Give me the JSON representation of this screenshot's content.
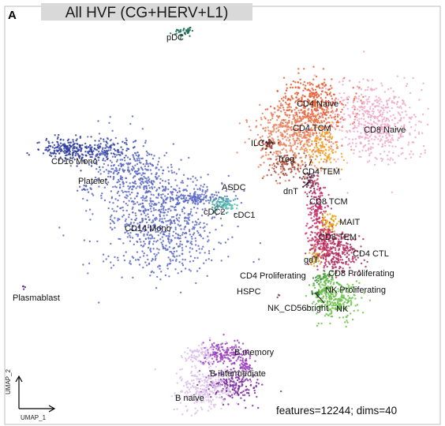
{
  "panel_letter": "A",
  "title": "All HVF (CG+HERV+L1)",
  "footer_note": "features=12244; dims=40",
  "chart_data": {
    "type": "scatter",
    "title": "All HVF (CG+HERV+L1)",
    "xlabel": "UMAP_1",
    "ylabel": "UMAP_2",
    "grid": false,
    "legend": "none (clusters labeled directly on plot)",
    "clusters": [
      {
        "name": "pDC",
        "color": "#1c6b57"
      },
      {
        "name": "CD16 Mono",
        "color": "#2e3d9c"
      },
      {
        "name": "Platelet",
        "color": "#4a56b3"
      },
      {
        "name": "CD14 Mono",
        "color": "#5a68c6"
      },
      {
        "name": "ASDC",
        "color": "#3aa79a"
      },
      {
        "name": "cDC2",
        "color": "#62c2b6"
      },
      {
        "name": "cDC1",
        "color": "#2e8c80"
      },
      {
        "name": "Plasmablast",
        "color": "#5b2a8f"
      },
      {
        "name": "CD4 Naive",
        "color": "#e85d35"
      },
      {
        "name": "CD8 Naive",
        "color": "#f0a8c4"
      },
      {
        "name": "CD4 TCM",
        "color": "#e8835e"
      },
      {
        "name": "ILC",
        "color": "#7a2a2a"
      },
      {
        "name": "Treg",
        "color": "#a84a3a"
      },
      {
        "name": "CD4 TEM",
        "color": "#f0a020"
      },
      {
        "name": "dnT",
        "color": "#6a2a4a"
      },
      {
        "name": "CD8 TCM",
        "color": "#c2306a"
      },
      {
        "name": "MAIT",
        "color": "#e8a010"
      },
      {
        "name": "CD8 TEM",
        "color": "#c83a6a"
      },
      {
        "name": "gdT",
        "color": "#d8a020"
      },
      {
        "name": "CD4 CTL",
        "color": "#b02a5a"
      },
      {
        "name": "CD4 Proliferating",
        "color": "#3a8a3a"
      },
      {
        "name": "CD8 Proliferating",
        "color": "#4aa83a"
      },
      {
        "name": "HSPC",
        "color": "#7a3a6a"
      },
      {
        "name": "NK Proliferating",
        "color": "#5ab83a"
      },
      {
        "name": "NK_CD56bright",
        "color": "#2a7a2a"
      },
      {
        "name": "NK",
        "color": "#6cc24a"
      },
      {
        "name": "B memory",
        "color": "#9b3fc0"
      },
      {
        "name": "B intermediate",
        "color": "#7a2aa0"
      },
      {
        "name": "B naive",
        "color": "#dcc0ea"
      }
    ]
  },
  "icons": {
    "umap_axis_arrows": "axis-arrows-icon"
  }
}
